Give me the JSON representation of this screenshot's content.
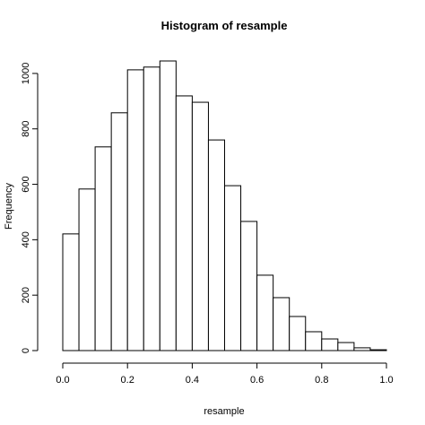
{
  "chart_data": {
    "type": "histogram",
    "title": "Histogram of resample",
    "x_label": "resample",
    "y_label": "Frequency",
    "bins": [
      0,
      0.05,
      0.1,
      0.15,
      0.2,
      0.25,
      0.3,
      0.35,
      0.4,
      0.45,
      0.5,
      0.55,
      0.6,
      0.65,
      0.7,
      0.75,
      0.8,
      0.85,
      0.9,
      0.95,
      1
    ],
    "values": [
      421,
      583,
      735,
      858,
      1013,
      1023,
      1045,
      919,
      896,
      760,
      595,
      466,
      272,
      191,
      123,
      68,
      42,
      29,
      10,
      3
    ],
    "color": "#ffffff",
    "edge_color": "#000000",
    "xlim": [
      0,
      1
    ],
    "ylim": [
      0,
      1045
    ],
    "xticks": [
      {
        "value": 0,
        "label": "0.0"
      },
      {
        "value": 0.2,
        "label": "0.2"
      },
      {
        "value": 0.4,
        "label": "0.4"
      },
      {
        "value": 0.6,
        "label": "0.6"
      },
      {
        "value": 0.8,
        "label": "0.8"
      },
      {
        "value": 1,
        "label": "1.0"
      }
    ],
    "yticks": [
      0,
      200,
      400,
      600,
      800,
      1000
    ]
  }
}
